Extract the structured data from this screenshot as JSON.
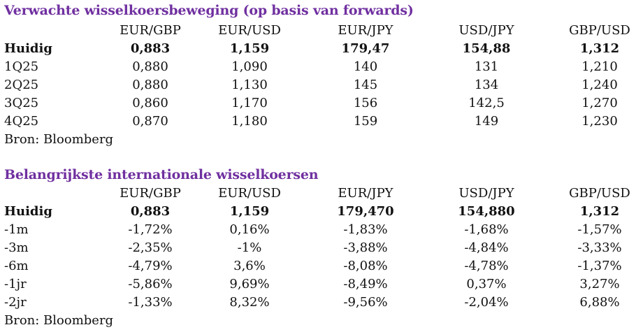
{
  "forwards": {
    "title": "Verwachte wisselkoersbeweging (op basis van forwards)",
    "columns": [
      "EUR/GBP",
      "EUR/USD",
      "EUR/JPY",
      "USD/JPY",
      "GBP/USD"
    ],
    "rows": [
      {
        "label": "Huidig",
        "bold": true,
        "values": [
          "0,883",
          "1,159",
          "179,47",
          "154,88",
          "1,312"
        ]
      },
      {
        "label": "1Q25",
        "values": [
          "0,880",
          "1,090",
          "140",
          "131",
          "1,210"
        ]
      },
      {
        "label": "2Q25",
        "values": [
          "0,880",
          "1,130",
          "145",
          "134",
          "1,240"
        ]
      },
      {
        "label": "3Q25",
        "values": [
          "0,860",
          "1,170",
          "156",
          "142,5",
          "1,270"
        ]
      },
      {
        "label": "4Q25",
        "values": [
          "0,870",
          "1,180",
          "159",
          "149",
          "1,230"
        ]
      }
    ],
    "source": "Bron: Bloomberg"
  },
  "rates": {
    "title": "Belangrijkste internationale wisselkoersen",
    "columns": [
      "EUR/GBP",
      "EUR/USD",
      "EUR/JPY",
      "USD/JPY",
      "GBP/USD"
    ],
    "rows": [
      {
        "label": "Huidig",
        "bold": true,
        "values": [
          "0,883",
          "1,159",
          "179,470",
          "154,880",
          "1,312"
        ]
      },
      {
        "label": "-1m",
        "values": [
          "-1,72%",
          "0,16%",
          "-1,83%",
          "-1,68%",
          "-1,57%"
        ]
      },
      {
        "label": "-3m",
        "values": [
          "-2,35%",
          "-1%",
          "-3,88%",
          "-4,84%",
          "-3,33%"
        ]
      },
      {
        "label": "-6m",
        "values": [
          "-4,79%",
          "3,6%",
          "-8,08%",
          "-4,78%",
          "-1,37%"
        ]
      },
      {
        "label": "-1jr",
        "values": [
          "-5,86%",
          "9,69%",
          "-8,49%",
          "0,37%",
          "3,27%"
        ]
      },
      {
        "label": "-2jr",
        "values": [
          "-1,33%",
          "8,32%",
          "-9,56%",
          "-2,04%",
          "6,88%"
        ]
      }
    ],
    "source": "Bron: Bloomberg"
  }
}
